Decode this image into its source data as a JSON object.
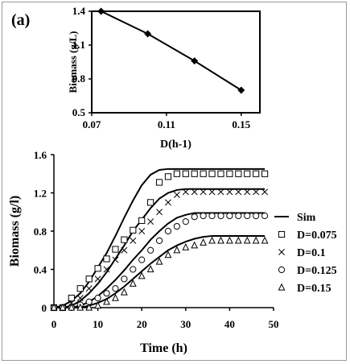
{
  "panel_label": "(a)",
  "chart_data": [
    {
      "type": "line",
      "xlabel": "D(h-1)",
      "ylabel": "Biomass (g/L)",
      "xlim": [
        0.07,
        0.16
      ],
      "ylim": [
        0.5,
        1.4
      ],
      "x_ticks": [
        "0.07",
        "0.11",
        "0.15"
      ],
      "y_ticks": [
        "0.5",
        "0.8",
        "1.1",
        "1.4"
      ],
      "marker": "diamond",
      "x": [
        0.075,
        0.1,
        0.125,
        0.15
      ],
      "y": [
        1.4,
        1.2,
        0.96,
        0.7
      ]
    },
    {
      "type": "scatter",
      "xlabel": "Time (h)",
      "ylabel": "Biomass (g/l)",
      "xlim": [
        0,
        50
      ],
      "ylim": [
        0,
        1.6
      ],
      "x_ticks": [
        "0",
        "10",
        "20",
        "30",
        "40",
        "50"
      ],
      "y_ticks": [
        "0",
        "0.4",
        "0.8",
        "1.2",
        "1.6"
      ],
      "legend_position": "right",
      "sim_label": "Sim",
      "sim_curves": [
        {
          "x": [
            0,
            2,
            4,
            6,
            8,
            10,
            12,
            14,
            16,
            18,
            20,
            22,
            24,
            26,
            28,
            30,
            32,
            34,
            36,
            38,
            40,
            42,
            44,
            46,
            48
          ],
          "y": [
            0,
            0.02,
            0.07,
            0.15,
            0.27,
            0.42,
            0.57,
            0.75,
            0.94,
            1.12,
            1.28,
            1.39,
            1.44,
            1.45,
            1.45,
            1.45,
            1.45,
            1.45,
            1.45,
            1.45,
            1.45,
            1.45,
            1.45,
            1.45,
            1.45
          ]
        },
        {
          "x": [
            0,
            2,
            4,
            6,
            8,
            10,
            12,
            14,
            16,
            18,
            20,
            22,
            24,
            26,
            28,
            30,
            32,
            34,
            36,
            38,
            40,
            42,
            44,
            46,
            48
          ],
          "y": [
            0,
            0,
            0.02,
            0.07,
            0.15,
            0.25,
            0.37,
            0.51,
            0.65,
            0.8,
            0.92,
            1.04,
            1.14,
            1.2,
            1.23,
            1.24,
            1.24,
            1.24,
            1.24,
            1.24,
            1.24,
            1.24,
            1.24,
            1.24,
            1.24
          ]
        },
        {
          "x": [
            0,
            2,
            4,
            6,
            8,
            10,
            12,
            14,
            16,
            18,
            20,
            22,
            24,
            26,
            28,
            30,
            32,
            34,
            36,
            38,
            40,
            42,
            44,
            46,
            48
          ],
          "y": [
            0,
            0,
            0,
            0.02,
            0.06,
            0.12,
            0.2,
            0.29,
            0.39,
            0.5,
            0.6,
            0.71,
            0.8,
            0.88,
            0.94,
            0.97,
            0.99,
            0.99,
            0.99,
            0.99,
            0.99,
            0.99,
            0.99,
            0.99,
            0.99
          ]
        },
        {
          "x": [
            0,
            2,
            4,
            6,
            8,
            10,
            12,
            14,
            16,
            18,
            20,
            22,
            24,
            26,
            28,
            30,
            32,
            34,
            36,
            38,
            40,
            42,
            44,
            46,
            48
          ],
          "y": [
            0,
            0,
            0,
            0,
            0.02,
            0.05,
            0.09,
            0.15,
            0.22,
            0.3,
            0.38,
            0.46,
            0.53,
            0.6,
            0.65,
            0.69,
            0.72,
            0.74,
            0.75,
            0.75,
            0.75,
            0.75,
            0.75,
            0.75,
            0.75
          ]
        }
      ],
      "series": [
        {
          "name": "D=0.075",
          "marker": "square",
          "x": [
            0,
            2,
            4,
            6,
            8,
            10,
            12,
            14,
            16,
            18,
            20,
            22,
            24,
            26,
            28,
            30,
            32,
            34,
            36,
            38,
            40,
            42,
            44,
            46,
            48
          ],
          "y": [
            0,
            0,
            0.1,
            0.2,
            0.3,
            0.41,
            0.51,
            0.61,
            0.71,
            0.81,
            0.91,
            1.1,
            1.31,
            1.37,
            1.4,
            1.4,
            1.4,
            1.4,
            1.4,
            1.4,
            1.4,
            1.4,
            1.4,
            1.4,
            1.4
          ]
        },
        {
          "name": "D=0.1",
          "marker": "x",
          "x": [
            0,
            2,
            4,
            6,
            8,
            10,
            12,
            14,
            16,
            18,
            20,
            22,
            24,
            26,
            28,
            30,
            32,
            34,
            36,
            38,
            40,
            42,
            44,
            46,
            48
          ],
          "y": [
            0,
            0,
            0.05,
            0.1,
            0.2,
            0.3,
            0.4,
            0.5,
            0.6,
            0.7,
            0.8,
            0.9,
            1.0,
            1.1,
            1.18,
            1.21,
            1.21,
            1.21,
            1.21,
            1.21,
            1.21,
            1.21,
            1.21,
            1.21,
            1.21
          ]
        },
        {
          "name": "D=0.125",
          "marker": "circle",
          "x": [
            0,
            2,
            4,
            6,
            8,
            10,
            12,
            14,
            16,
            18,
            20,
            22,
            24,
            26,
            28,
            30,
            32,
            34,
            36,
            38,
            40,
            42,
            44,
            46,
            48
          ],
          "y": [
            0,
            0,
            0,
            0.03,
            0.06,
            0.1,
            0.15,
            0.2,
            0.3,
            0.4,
            0.5,
            0.6,
            0.7,
            0.8,
            0.85,
            0.9,
            0.95,
            0.96,
            0.96,
            0.96,
            0.96,
            0.96,
            0.96,
            0.96,
            0.96
          ]
        },
        {
          "name": "D=0.15",
          "marker": "triangle",
          "x": [
            0,
            2,
            4,
            6,
            8,
            10,
            12,
            14,
            16,
            18,
            20,
            22,
            24,
            26,
            28,
            30,
            32,
            34,
            36,
            38,
            40,
            42,
            44,
            46,
            48
          ],
          "y": [
            0,
            0,
            0,
            0,
            0,
            0.02,
            0.06,
            0.1,
            0.16,
            0.25,
            0.33,
            0.4,
            0.48,
            0.55,
            0.6,
            0.63,
            0.65,
            0.68,
            0.7,
            0.7,
            0.7,
            0.7,
            0.7,
            0.7,
            0.7
          ]
        }
      ]
    }
  ]
}
